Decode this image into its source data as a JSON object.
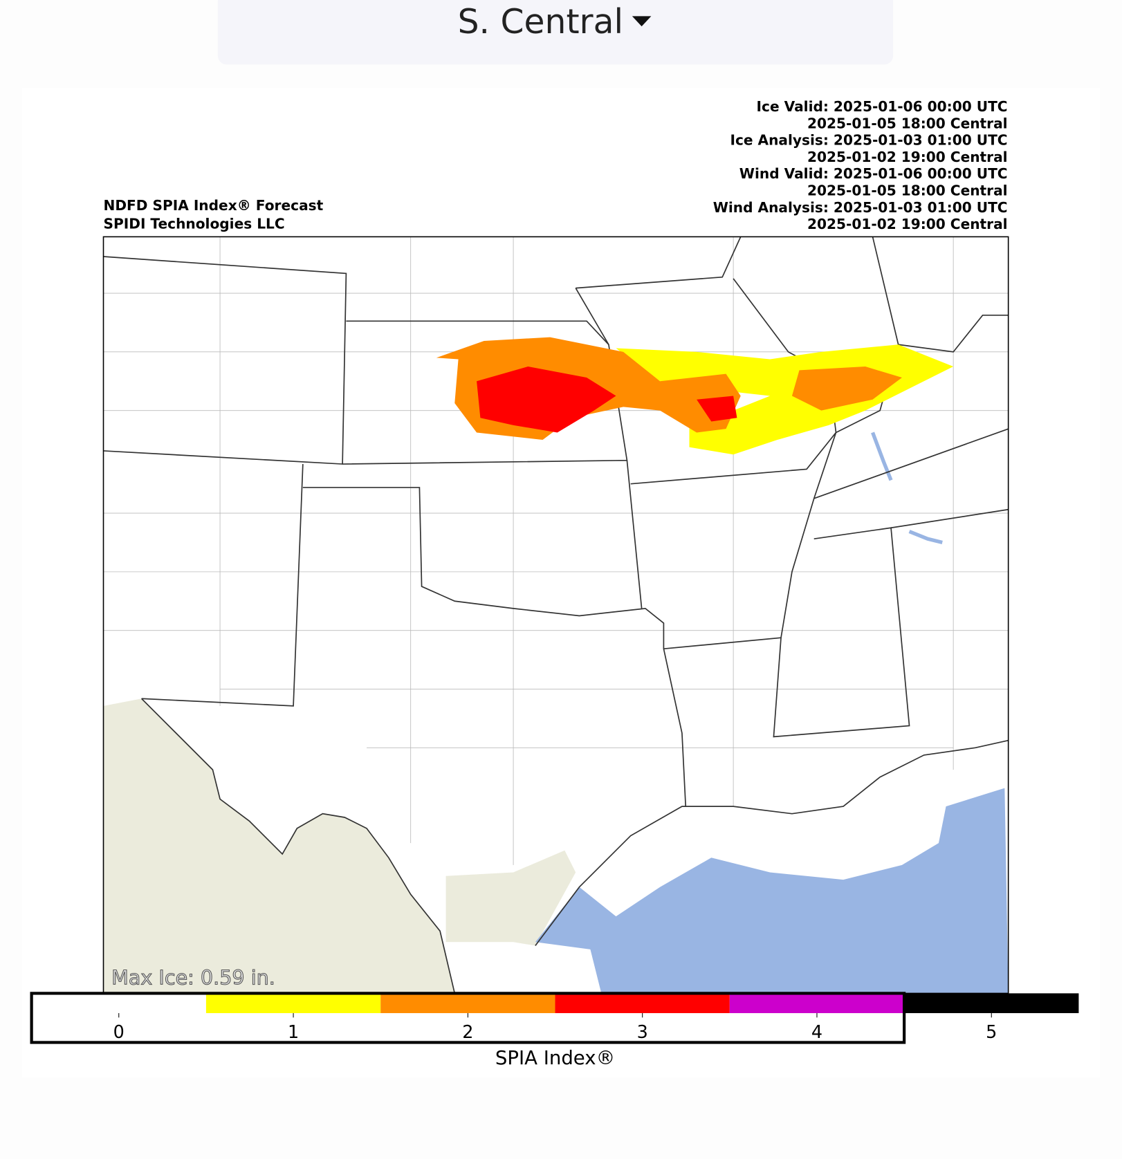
{
  "dropdown": {
    "label": "S. Central"
  },
  "header": {
    "left": [
      "NDFD SPIA Index® Forecast",
      "SPIDI Technologies LLC"
    ],
    "right": [
      "Ice Valid: 2025-01-06 00:00 UTC",
      "2025-01-05 18:00 Central",
      "Ice Analysis: 2025-01-03 01:00 UTC",
      "2025-01-02 19:00 Central",
      "Wind Valid: 2025-01-06 00:00 UTC",
      "2025-01-05 18:00 Central",
      "Wind Analysis: 2025-01-03 01:00 UTC",
      "2025-01-02 19:00 Central"
    ]
  },
  "map": {
    "max_ice": "Max Ice: 0.59 in."
  },
  "colorbar": {
    "label": "SPIA Index®",
    "lim": [
      -0.5,
      5.5
    ],
    "ticks": [
      0,
      1,
      2,
      3,
      4,
      5
    ],
    "colors": [
      "#ffffff",
      "#ffff00",
      "#ff8c00",
      "#ff0000",
      "#cc00cc",
      "#000000"
    ]
  }
}
